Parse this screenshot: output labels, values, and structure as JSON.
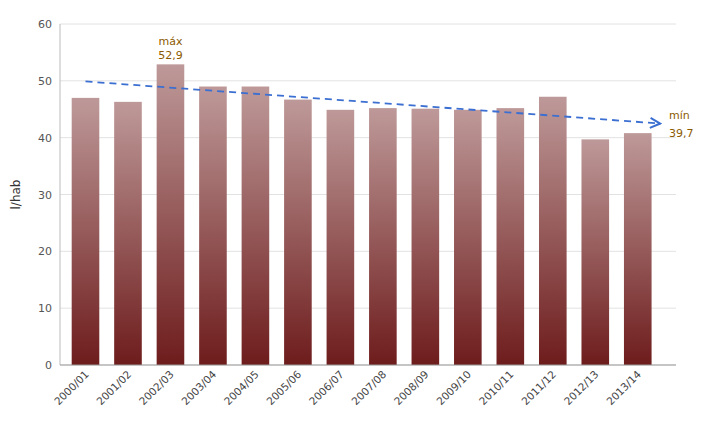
{
  "chart_data": {
    "type": "bar",
    "categories": [
      "2000/01",
      "2001/02",
      "2002/03",
      "2003/04",
      "2004/05",
      "2005/06",
      "2006/07",
      "2007/08",
      "2008/09",
      "2009/10",
      "2010/11",
      "2011/12",
      "2012/13",
      "2013/14"
    ],
    "values": [
      47.0,
      46.3,
      52.9,
      49.0,
      49.0,
      46.7,
      44.9,
      45.2,
      45.1,
      44.9,
      45.2,
      47.2,
      39.7,
      40.8
    ],
    "color": "#6e1c1c",
    "ylabel": "l/hab",
    "ylim": [
      0,
      60
    ],
    "yticks": [
      0,
      10,
      20,
      30,
      40,
      50,
      60
    ],
    "grid": true,
    "trend_start": 49.9,
    "trend_end": 42.5,
    "annotations": [
      {
        "text": "máx",
        "value": 52.9,
        "label": "52,9"
      },
      {
        "text": "mín",
        "value": 39.7,
        "label": "39,7"
      }
    ]
  }
}
